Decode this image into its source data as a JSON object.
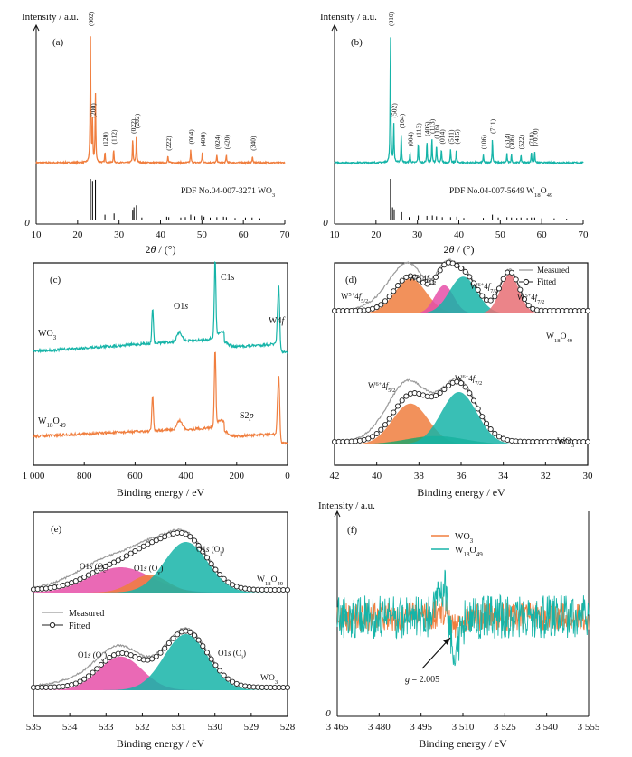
{
  "colors": {
    "orange": "#F07E3E",
    "teal": "#16B4A8",
    "pink": "#E64FA8",
    "salmon": "#E86F74",
    "green": "#21A46A",
    "blue": "#1E7EB6",
    "measured": "#9A9A9A",
    "axis": "#111111"
  },
  "chart_data": [
    {
      "panel": "a",
      "type": "line",
      "label": "(a)",
      "ylabel": "Intensity / a.u.",
      "xlabel": "2θ / (°)",
      "xlim": [
        10,
        70
      ],
      "xticks": [
        "10",
        "20",
        "30",
        "40",
        "50",
        "60",
        "70"
      ],
      "y_zero_label": "0",
      "pattern_peaks": [
        {
          "x": 23.1,
          "h": 1.0,
          "label": "(002)"
        },
        {
          "x": 23.6,
          "h": 0.3,
          "label": "(200)"
        },
        {
          "x": 24.3,
          "h": 0.55,
          "label": ""
        },
        {
          "x": 26.6,
          "h": 0.08,
          "label": "(120)"
        },
        {
          "x": 28.7,
          "h": 0.1,
          "label": "(112)"
        },
        {
          "x": 33.3,
          "h": 0.18,
          "label": "(022)"
        },
        {
          "x": 34.2,
          "h": 0.22,
          "label": "(202)"
        },
        {
          "x": 41.8,
          "h": 0.05,
          "label": "(222)"
        },
        {
          "x": 47.3,
          "h": 0.1,
          "label": "(004)"
        },
        {
          "x": 50.1,
          "h": 0.08,
          "label": "(400)"
        },
        {
          "x": 53.6,
          "h": 0.06,
          "label": "(024)"
        },
        {
          "x": 55.9,
          "h": 0.06,
          "label": "(420)"
        },
        {
          "x": 62.2,
          "h": 0.05,
          "label": "(340)"
        }
      ],
      "pdf_label": "PDF No.04-007-3271 WO",
      "pdf_sub": "3",
      "pdf_sticks": [
        [
          23.1,
          1.0
        ],
        [
          23.6,
          0.95
        ],
        [
          24.3,
          0.98
        ],
        [
          26.6,
          0.12
        ],
        [
          28.8,
          0.15
        ],
        [
          33.3,
          0.22
        ],
        [
          33.6,
          0.3
        ],
        [
          34.2,
          0.35
        ],
        [
          35.5,
          0.05
        ],
        [
          41.5,
          0.07
        ],
        [
          42.0,
          0.06
        ],
        [
          44.9,
          0.05
        ],
        [
          46.0,
          0.06
        ],
        [
          47.3,
          0.12
        ],
        [
          48.3,
          0.08
        ],
        [
          49.9,
          0.1
        ],
        [
          50.5,
          0.07
        ],
        [
          52.0,
          0.05
        ],
        [
          53.6,
          0.06
        ],
        [
          55.2,
          0.07
        ],
        [
          55.9,
          0.06
        ],
        [
          58.0,
          0.04
        ],
        [
          60.5,
          0.05
        ],
        [
          62.1,
          0.05
        ],
        [
          64.0,
          0.03
        ]
      ]
    },
    {
      "panel": "b",
      "type": "line",
      "label": "(b)",
      "ylabel": "Intensity / a.u.",
      "xlabel": "2θ / (°)",
      "xlim": [
        10,
        70
      ],
      "xticks": [
        "10",
        "20",
        "30",
        "40",
        "50",
        "60",
        "70"
      ],
      "y_zero_label": "0",
      "pattern_peaks": [
        {
          "x": 23.5,
          "h": 1.0,
          "label": "(010)"
        },
        {
          "x": 24.3,
          "h": 0.3,
          "label": "(502)"
        },
        {
          "x": 26.1,
          "h": 0.22,
          "label": "(104)"
        },
        {
          "x": 28.2,
          "h": 0.08,
          "label": "(004)"
        },
        {
          "x": 30.2,
          "h": 0.15,
          "label": "(113)"
        },
        {
          "x": 32.3,
          "h": 0.16,
          "label": "(405)"
        },
        {
          "x": 33.5,
          "h": 0.18,
          "label": "(113)"
        },
        {
          "x": 34.6,
          "h": 0.14,
          "label": "(116)"
        },
        {
          "x": 35.8,
          "h": 0.1,
          "label": "(014)"
        },
        {
          "x": 38.0,
          "h": 0.1,
          "label": "(511)"
        },
        {
          "x": 39.4,
          "h": 0.1,
          "label": "(415)"
        },
        {
          "x": 45.9,
          "h": 0.06,
          "label": "(106)"
        },
        {
          "x": 48.1,
          "h": 0.18,
          "label": "(711)"
        },
        {
          "x": 51.6,
          "h": 0.07,
          "label": "(614)"
        },
        {
          "x": 52.7,
          "h": 0.06,
          "label": "(306)"
        },
        {
          "x": 55.0,
          "h": 0.06,
          "label": "(522)"
        },
        {
          "x": 57.5,
          "h": 0.08,
          "label": "(718)"
        },
        {
          "x": 58.3,
          "h": 0.08,
          "label": "(7010)"
        }
      ],
      "pdf_label": "PDF No.04-007-5649 W",
      "pdf_sub1": "18",
      "pdf_mid": "O",
      "pdf_sub2": "49",
      "pdf_sticks": [
        [
          23.5,
          1.0
        ],
        [
          24.0,
          0.3
        ],
        [
          24.4,
          0.25
        ],
        [
          26.2,
          0.18
        ],
        [
          28.0,
          0.06
        ],
        [
          30.2,
          0.1
        ],
        [
          32.3,
          0.09
        ],
        [
          33.6,
          0.1
        ],
        [
          34.6,
          0.08
        ],
        [
          36.0,
          0.06
        ],
        [
          38.0,
          0.06
        ],
        [
          39.5,
          0.07
        ],
        [
          41.2,
          0.04
        ],
        [
          45.9,
          0.04
        ],
        [
          48.1,
          0.12
        ],
        [
          49.5,
          0.05
        ],
        [
          51.6,
          0.06
        ],
        [
          52.7,
          0.05
        ],
        [
          54.0,
          0.04
        ],
        [
          55.0,
          0.05
        ],
        [
          56.5,
          0.04
        ],
        [
          57.5,
          0.05
        ],
        [
          58.3,
          0.05
        ],
        [
          60.0,
          0.03
        ],
        [
          63.0,
          0.03
        ],
        [
          66.0,
          0.02
        ]
      ]
    },
    {
      "panel": "c",
      "type": "line",
      "label": "(c)",
      "xlabel": "Binding energy / eV",
      "xlim": [
        1000,
        0
      ],
      "xticks": [
        "1 000",
        "800",
        "600",
        "400",
        "200",
        "0"
      ],
      "annotations": [
        "O1s",
        "C1s",
        "W4f",
        "S2p"
      ],
      "series": [
        {
          "name": "WO",
          "sub": "3",
          "color": "teal"
        },
        {
          "name": "W",
          "sub1": "18",
          "mid": "O",
          "sub2": "49",
          "color": "orange"
        }
      ]
    },
    {
      "panel": "d",
      "type": "area",
      "label": "(d)",
      "xlabel": "Binding energy / eV",
      "xlim": [
        42,
        30
      ],
      "xticks": [
        "42",
        "40",
        "38",
        "36",
        "34",
        "32",
        "30"
      ],
      "legend": {
        "measured": "Measured",
        "fitted": "Fitted"
      },
      "upper_series": "W18O49",
      "lower_series": "WO3",
      "upper_components": [
        {
          "center": 38.4,
          "width": 0.75,
          "height": 0.8,
          "color": "orange"
        },
        {
          "center": 36.8,
          "width": 0.45,
          "height": 0.65,
          "color": "pink"
        },
        {
          "center": 35.9,
          "width": 0.65,
          "height": 0.85,
          "color": "teal"
        },
        {
          "center": 33.7,
          "width": 0.45,
          "height": 0.9,
          "color": "salmon"
        }
      ],
      "lower_components": [
        {
          "center": 38.4,
          "width": 0.85,
          "height": 0.78,
          "color": "orange"
        },
        {
          "center": 37.2,
          "width": 1.4,
          "height": 0.16,
          "color": "green"
        },
        {
          "center": 36.1,
          "width": 0.85,
          "height": 1.0,
          "color": "teal"
        }
      ]
    },
    {
      "panel": "e",
      "type": "area",
      "label": "(e)",
      "xlabel": "Binding energy / eV",
      "xlim": [
        535,
        528
      ],
      "xticks": [
        "535",
        "534",
        "533",
        "532",
        "531",
        "530",
        "529",
        "528"
      ],
      "legend": {
        "measured": "Measured",
        "fitted": "Fitted"
      },
      "upper_components": [
        {
          "center": 532.6,
          "width": 0.85,
          "height": 0.5,
          "color": "pink"
        },
        {
          "center": 531.8,
          "width": 0.5,
          "height": 0.35,
          "color": "orange"
        },
        {
          "center": 530.8,
          "width": 0.6,
          "height": 1.0,
          "color": "teal"
        }
      ],
      "lower_components": [
        {
          "center": 532.6,
          "width": 0.6,
          "height": 0.6,
          "color": "pink"
        },
        {
          "center": 530.8,
          "width": 0.6,
          "height": 1.0,
          "color": "teal"
        }
      ]
    },
    {
      "panel": "f",
      "type": "line",
      "label": "(f)",
      "ylabel": "Intensity / a.u.",
      "xlabel": "Binding energy / eV",
      "xlim": [
        3465,
        3555
      ],
      "xticks": [
        "3 465",
        "3 480",
        "3 495",
        "3 510",
        "3 525",
        "3 540",
        "3 555"
      ],
      "y_zero_label": "0",
      "g_label": "g = 2.005",
      "series": [
        {
          "name": "WO",
          "sub": "3",
          "color": "orange"
        },
        {
          "name": "W",
          "sub1": "18",
          "mid": "O",
          "sub2": "49",
          "color": "teal"
        }
      ]
    }
  ],
  "text": {
    "c_label_wo3": "WO",
    "c_sub_3": "3",
    "c_label_w": "W",
    "c_sub_18": "18",
    "c_label_o": "O",
    "c_sub_49": "49",
    "d_upper_labels": {
      "a": "W",
      "a_sup": "5+",
      "a_rest": "4f",
      "a_sub": "5/2",
      "b": "W",
      "b_sup": "5+",
      "b_rest": "4f",
      "b_sub": "5/2",
      "c": "W",
      "c_sup": "6+",
      "c_rest": "4f",
      "c_sub": "7/2",
      "d": "W",
      "d_sup": "5+",
      "d_rest": "4f",
      "d_sub": "7/2"
    },
    "e_upper_labels": [
      "O1s (O",
      "O1s (O",
      "O1s (O"
    ],
    "e_upper_subs": [
      "c",
      "v",
      "l"
    ],
    "e_lower_labels": [
      "O1s (O",
      "O1s (O"
    ],
    "e_lower_subs": [
      "c",
      "l"
    ]
  }
}
